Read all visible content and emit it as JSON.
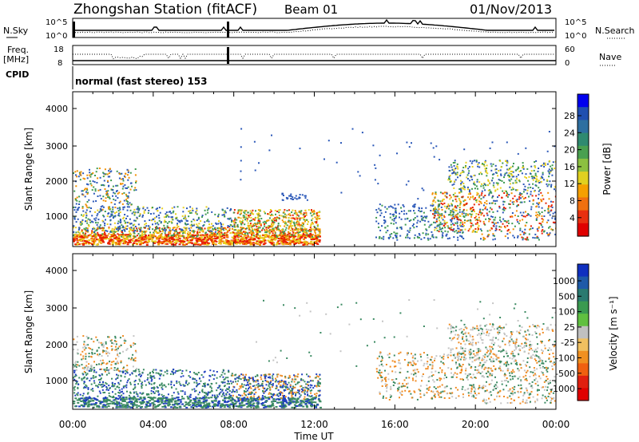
{
  "header": {
    "title": "Zhongshan Station (fitACF)",
    "beam": "Beam 01",
    "date": "01/Nov/2013"
  },
  "status_panels": {
    "nsky_label": "N.Sky",
    "nsky_ticks": [
      "10^5",
      "10^0"
    ],
    "nsearch_label": "N.Search",
    "nsearch_ticks": [
      "10^5",
      "10^0"
    ],
    "freq_label_line1": "Freq.",
    "freq_label_line2": "[MHz]",
    "freq_ticks": [
      "18",
      "8"
    ],
    "nave_label": "Nave",
    "nave_ticks": [
      "60",
      "0"
    ],
    "cpid_label": "CPID",
    "cpid_text": "normal (fast stereo) 153"
  },
  "chart_data": [
    {
      "type": "heatmap",
      "panel": "power",
      "ylabel": "Slant Range [km]",
      "xlabel": "Time UT",
      "ylim": [
        180,
        4600
      ],
      "y_ticks": [
        "4000",
        "3000",
        "2000",
        "1000"
      ],
      "x_ticks": [
        "00:00",
        "04:00",
        "08:00",
        "12:00",
        "16:00",
        "20:00",
        "00:00"
      ],
      "colorbar": {
        "label": "Power [dB]",
        "ticks": [
          "28",
          "24",
          "20",
          "16",
          "12",
          "8",
          "4"
        ],
        "colors": [
          "#0000ee",
          "#1f4fb0",
          "#2e6fa0",
          "#2f8a70",
          "#4aa050",
          "#8cc040",
          "#e0d020",
          "#f5a000",
          "#f07010",
          "#e83010",
          "#e00000"
        ]
      }
    },
    {
      "type": "heatmap",
      "panel": "velocity",
      "ylabel": "Slant Range [km]",
      "xlabel": "Time UT",
      "ylim": [
        180,
        4600
      ],
      "y_ticks": [
        "4000",
        "3000",
        "2000",
        "1000"
      ],
      "x_ticks": [
        "00:00",
        "04:00",
        "08:00",
        "12:00",
        "16:00",
        "20:00",
        "00:00"
      ],
      "colorbar": {
        "label": "Velocity [m s⁻¹]",
        "ticks": [
          "1000",
          "500",
          "100",
          "25",
          "-25",
          "-100",
          "-500",
          "-1000"
        ],
        "colors": [
          "#1030c0",
          "#1e5aa8",
          "#2a7a70",
          "#3a9a50",
          "#60c040",
          "#c0c0c0",
          "#f0c060",
          "#f09020",
          "#f06010",
          "#e02010",
          "#e00000"
        ]
      }
    }
  ],
  "colors": {
    "power_red": "#e82000",
    "power_orange": "#f29000",
    "power_yellow": "#e8d020",
    "power_green": "#3e9a50",
    "power_blue": "#2b58b8",
    "vel_green": "#3b8a62",
    "vel_grey": "#c4c4c4",
    "vel_orange": "#f08a20",
    "vel_blue": "#2040c0"
  }
}
